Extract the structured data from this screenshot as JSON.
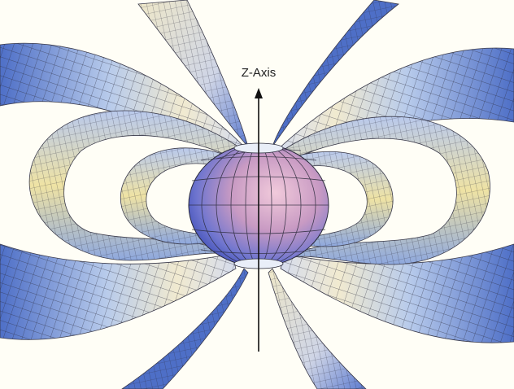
{
  "axis": {
    "label": "Z-Axis"
  },
  "colors": {
    "background": "#fffef6",
    "band_blue": "#9fb9e6",
    "band_blue_dark": "#4e6fc7",
    "band_cream": "#f3eccb",
    "band_yellow": "#ecdf9c",
    "band_grey": "#d7d8de",
    "grid_line": "#2a2a3a",
    "sphere_blue": "#5e72cc",
    "sphere_pink": "#dcaac8",
    "axis_line": "#111111"
  }
}
